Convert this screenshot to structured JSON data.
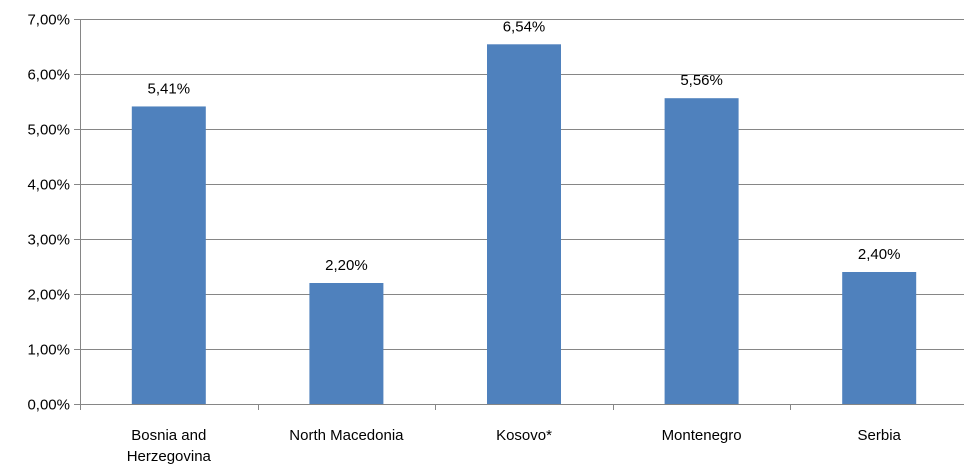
{
  "chart_data": {
    "type": "bar",
    "title": "",
    "xlabel": "",
    "ylabel": "",
    "ylim": [
      0,
      7
    ],
    "y_ticks": [
      0,
      1,
      2,
      3,
      4,
      5,
      6,
      7
    ],
    "y_tick_labels": [
      "0,00%",
      "1,00%",
      "2,00%",
      "3,00%",
      "4,00%",
      "5,00%",
      "6,00%",
      "7,00%"
    ],
    "grid": true,
    "legend": "none",
    "bar_color": "#4F81BD",
    "categories": [
      [
        "Bosnia and",
        "Herzegovina"
      ],
      [
        "North Macedonia"
      ],
      [
        "Kosovo*"
      ],
      [
        "Montenegro"
      ],
      [
        "Serbia"
      ]
    ],
    "values": [
      5.41,
      2.2,
      6.54,
      5.56,
      2.4
    ],
    "value_labels": [
      "5,41%",
      "2,20%",
      "6,54%",
      "5,56%",
      "2,40%"
    ]
  }
}
